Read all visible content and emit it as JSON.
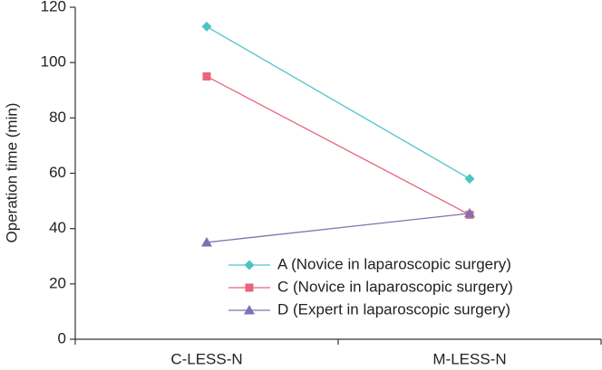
{
  "chart_data": {
    "type": "line",
    "y_label": "Operation time (min)",
    "categories": [
      "C-LESS-N",
      "M-LESS-N"
    ],
    "series": [
      {
        "name": "A (Novice in laparoscopic surgery)",
        "color": "#4ec3c7",
        "marker": "diamond",
        "values": [
          113,
          58
        ]
      },
      {
        "name": "C (Novice in laparoscopic surgery)",
        "color": "#e8667e",
        "marker": "square",
        "values": [
          95,
          45
        ]
      },
      {
        "name": "D (Expert in laparoscopic surgery)",
        "color": "#7f72b3",
        "marker": "triangle",
        "values": [
          35,
          45.5
        ]
      }
    ],
    "ylim": [
      0,
      120
    ],
    "yticks": [
      0,
      20,
      40,
      60,
      80,
      100,
      120
    ],
    "legend": "lower right"
  }
}
